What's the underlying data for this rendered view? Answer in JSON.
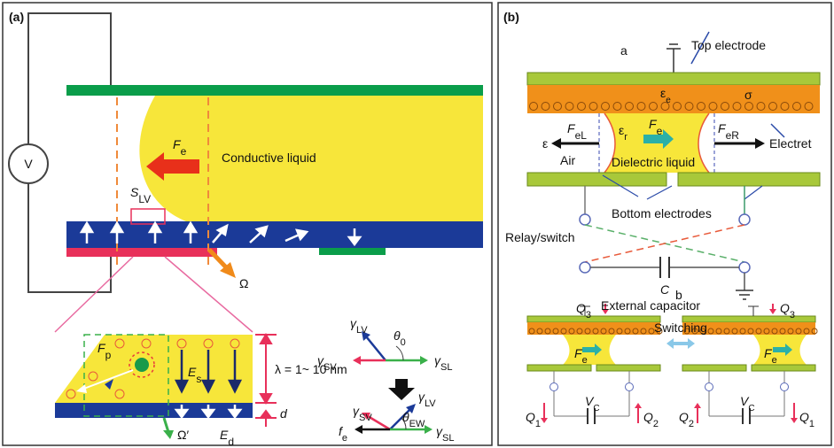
{
  "panel_a": {
    "label": "(a)",
    "voltage": "V",
    "liquid": "Conductive liquid",
    "force": {
      "main": "F",
      "sub": "e"
    },
    "surface": {
      "main": "S",
      "sub": "LV"
    },
    "omega": "Ω",
    "inset": {
      "pinning_force": {
        "main": "F",
        "sub": "p"
      },
      "field_s": {
        "main": "E",
        "sub": "s"
      },
      "lambda": "λ = 1~ 10 nm",
      "thickness": "d",
      "omega_prime": "Ω′",
      "field_d": {
        "main": "E",
        "sub": "d"
      }
    },
    "young": {
      "gamma_lv": {
        "main": "γ",
        "sub": "LV"
      },
      "theta": {
        "main": "θ",
        "sub": "0"
      },
      "gamma_sv": {
        "main": "γ",
        "sub": "SV"
      },
      "gamma_sl": {
        "main": "γ",
        "sub": "SL"
      }
    },
    "electrowetting": {
      "gamma_lv": {
        "main": "γ",
        "sub": "LV"
      },
      "gamma_sv": {
        "main": "γ",
        "sub": "SV"
      },
      "theta": {
        "main": "θ",
        "sub": "EW"
      },
      "gamma_sl": {
        "main": "γ",
        "sub": "SL"
      },
      "force": {
        "main": "f",
        "sub": "e"
      }
    }
  },
  "panel_b": {
    "label": "(b)",
    "part_a": "a",
    "top_electrode": "Top electrode",
    "epsilon_e": {
      "main": "ε",
      "sub": "e"
    },
    "sigma": "σ",
    "force_left": {
      "main": "F",
      "sub": "eL"
    },
    "epsilon_r": {
      "main": "ε",
      "sub": "r"
    },
    "force": {
      "main": "F",
      "sub": "e"
    },
    "force_right": {
      "main": "F",
      "sub": "eR"
    },
    "epsilon": "ε",
    "air": "Air",
    "dielectric": "Dielectric liquid",
    "electret": "Electret",
    "bottom_electrodes": "Bottom electrodes",
    "relay": "Relay/switch",
    "capacitor_symbol": "C",
    "capacitor": "External capacitor",
    "part_b": "b",
    "left": {
      "q3": {
        "main": "Q",
        "sub": "3"
      },
      "force": {
        "main": "F",
        "sub": "e"
      },
      "q1": {
        "main": "Q",
        "sub": "1"
      },
      "vc": {
        "main": "V",
        "sub": "C"
      },
      "q2": {
        "main": "Q",
        "sub": "2"
      }
    },
    "switching": "Switching",
    "right": {
      "q3": {
        "main": "Q",
        "sub": "3"
      },
      "force": {
        "main": "F",
        "sub": "e"
      },
      "q2": {
        "main": "Q",
        "sub": "2"
      },
      "vc": {
        "main": "V",
        "sub": "C"
      },
      "q1": {
        "main": "Q",
        "sub": "1"
      }
    }
  }
}
